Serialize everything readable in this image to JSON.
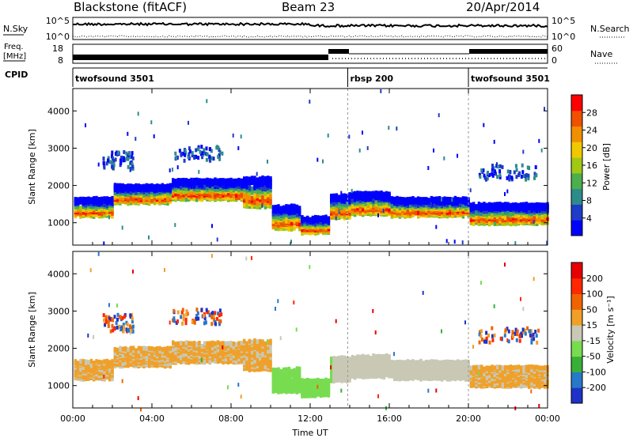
{
  "header": {
    "station": "Blackstone (fitACF)",
    "beam": "Beam 23",
    "date": "20/Apr/2014"
  },
  "panels": {
    "nsky_label": "N.Sky",
    "nsearch_label": "N.Search",
    "freq_label_top": "Freq.",
    "freq_label_bottom": "[MHz]",
    "nave_label": "Nave",
    "cpid_label": "CPID",
    "nsky_ticks": [
      "10^5",
      "10^0"
    ],
    "nsearch_ticks": [
      "10^5",
      "10^0"
    ],
    "freq_ticks": [
      "18",
      "8"
    ],
    "nave_ticks": [
      "60",
      "0"
    ]
  },
  "cpid": [
    {
      "label": "twofsound 3501",
      "start": 0,
      "end": 13.9
    },
    {
      "label": "rbsp 200",
      "start": 13.9,
      "end": 20.0
    },
    {
      "label": "twofsound 3501",
      "start": 20.0,
      "end": 24
    }
  ],
  "chart_data": [
    {
      "type": "heatmap",
      "name": "power",
      "xlabel": "Time UT",
      "ylabel": "Slant Range [km]",
      "xlim": [
        0,
        24
      ],
      "ylim": [
        400,
        4600
      ],
      "yticks": [
        1000,
        2000,
        3000,
        4000
      ],
      "colorbar": {
        "label": "Power [dB]",
        "ticks": [
          "28",
          "24",
          "20",
          "16",
          "12",
          "8",
          "4"
        ],
        "colors": [
          "#0000ff",
          "#1e3cc8",
          "#2e8b8b",
          "#4cae4c",
          "#a0c814",
          "#f0c800",
          "#f09000",
          "#f05000",
          "#ff0000"
        ]
      }
    },
    {
      "type": "heatmap",
      "name": "velocity",
      "xlabel": "Time UT",
      "ylabel": "Slant Range [km]",
      "xlim": [
        0,
        24
      ],
      "ylim": [
        400,
        4600
      ],
      "yticks": [
        1000,
        2000,
        3000,
        4000
      ],
      "colorbar": {
        "label": "Velocity [m s⁻¹]",
        "ticks": [
          "200",
          "100",
          "50",
          "15",
          "-15",
          "-50",
          "-100",
          "-200"
        ],
        "colors": [
          "#1e32c8",
          "#2878c8",
          "#38b038",
          "#78dc50",
          "#c8c8b4",
          "#f0a028",
          "#f06400",
          "#ff2800",
          "#e60000"
        ]
      }
    }
  ],
  "xaxis": {
    "label": "Time UT",
    "ticks": [
      "00:00",
      "04:00",
      "08:00",
      "12:00",
      "16:00",
      "20:00",
      "00:00"
    ]
  },
  "scatter_bands": [
    {
      "t0": 0.0,
      "t1": 2.0,
      "r0": 1250,
      "r1": 1700
    },
    {
      "t0": 2.0,
      "t1": 5.0,
      "r0": 1600,
      "r1": 2050
    },
    {
      "t0": 5.0,
      "t1": 8.5,
      "r0": 1700,
      "r1": 2200
    },
    {
      "t0": 8.5,
      "t1": 10.0,
      "r0": 1500,
      "r1": 2250
    },
    {
      "t0": 10.0,
      "t1": 11.5,
      "r0": 900,
      "r1": 1500
    },
    {
      "t0": 11.5,
      "t1": 13.0,
      "r0": 800,
      "r1": 1200
    },
    {
      "t0": 13.0,
      "t1": 14.0,
      "r0": 1200,
      "r1": 1800
    },
    {
      "t0": 14.0,
      "t1": 16.0,
      "r0": 1300,
      "r1": 1850
    },
    {
      "t0": 16.0,
      "t1": 20.0,
      "r0": 1250,
      "r1": 1700
    },
    {
      "t0": 20.0,
      "t1": 24.0,
      "r0": 1050,
      "r1": 1550
    }
  ]
}
